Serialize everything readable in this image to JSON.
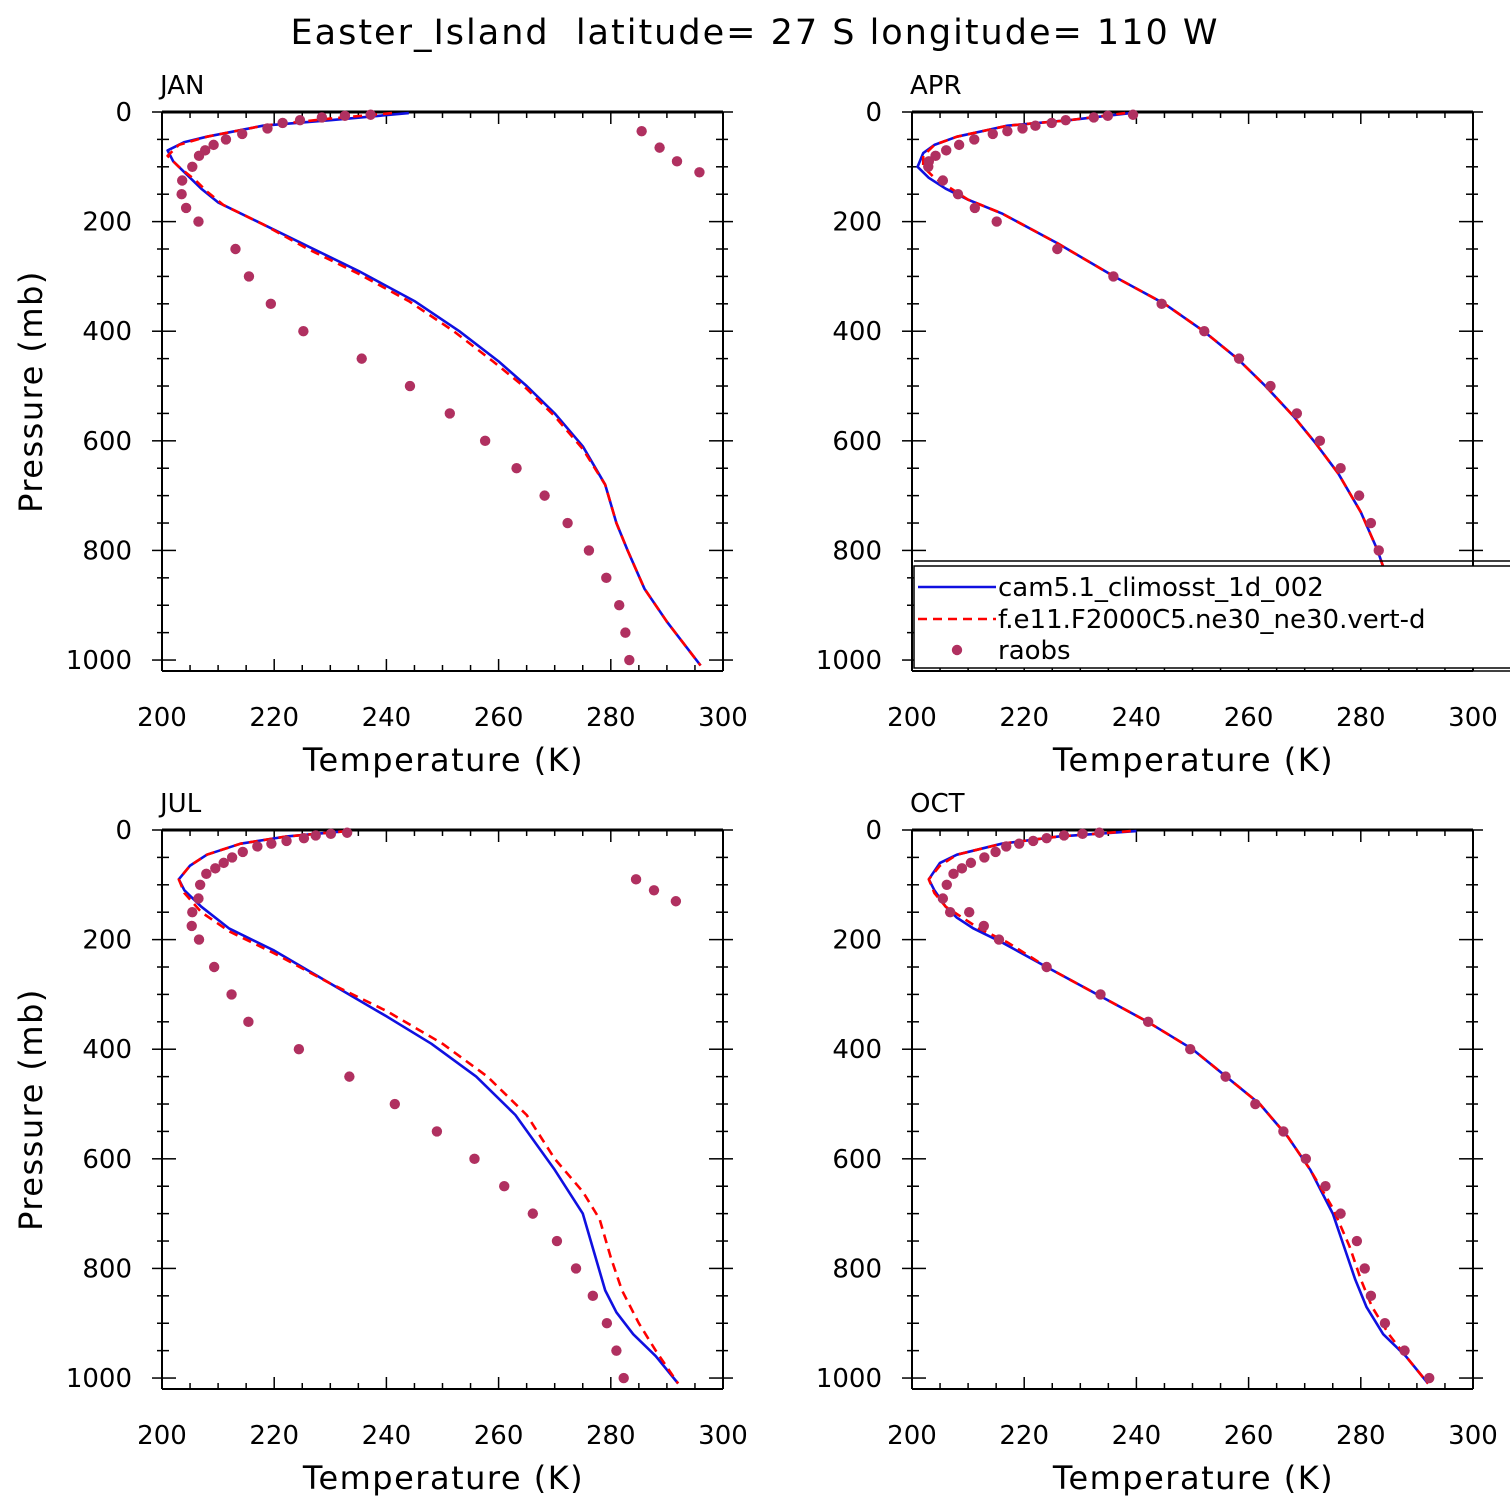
{
  "figure": {
    "title": "Easter_Island  latitude= 27 S longitude= 110 W"
  },
  "colors": {
    "model1": "#1010e0",
    "model2": "#ff0000",
    "obs": "#b03060",
    "axis": "#000000"
  },
  "legend": {
    "placement": "lower-right of APR panel",
    "entries": [
      {
        "label": "cam5.1_climosst_1d_002",
        "style": "solid",
        "color": "#1010e0"
      },
      {
        "label": "f.e11.F2000C5.ne30_ne30.vert-d",
        "style": "dashed",
        "color": "#ff0000"
      },
      {
        "label": "raobs",
        "style": "marker",
        "color": "#b03060"
      }
    ]
  },
  "chart_data": [
    {
      "type": "line",
      "panel_label": "JAN",
      "xlabel": "Temperature (K)",
      "ylabel": "Pressure (mb)",
      "xlim": [
        200,
        300
      ],
      "ylim": [
        1000,
        0
      ],
      "xticks": [
        200,
        220,
        240,
        260,
        280,
        300
      ],
      "yticks": [
        0,
        200,
        400,
        600,
        800,
        1000
      ],
      "series": [
        {
          "name": "cam5.1_climosst_1d_002",
          "style": "solid",
          "x": [
            244,
            230,
            218,
            208,
            204,
            201,
            202,
            205,
            207,
            210,
            217,
            226,
            235,
            245,
            253,
            260,
            265,
            270,
            275,
            279,
            281,
            283,
            286,
            290,
            293,
            296
          ],
          "y": [
            2,
            15,
            25,
            45,
            55,
            70,
            90,
            120,
            140,
            165,
            200,
            245,
            290,
            345,
            400,
            455,
            500,
            550,
            610,
            680,
            750,
            800,
            870,
            930,
            970,
            1010
          ]
        },
        {
          "name": "f.e11.F2000C5.ne30_ne30.vert-d",
          "style": "dashed",
          "x": [
            241,
            230,
            218,
            208,
            203,
            201,
            203,
            206,
            208,
            211,
            218,
            226,
            235,
            244,
            252,
            259,
            265,
            270,
            275,
            279,
            281,
            283,
            286,
            290,
            293,
            296
          ],
          "y": [
            2,
            12,
            25,
            45,
            60,
            80,
            100,
            125,
            145,
            170,
            205,
            250,
            295,
            345,
            400,
            455,
            505,
            555,
            615,
            680,
            750,
            800,
            870,
            930,
            970,
            1010
          ]
        },
        {
          "name": "raobs",
          "style": "marker",
          "x": [
            237.2,
            232.6,
            228.5,
            224.6,
            221.5,
            218.8,
            214.3,
            211.4,
            209.2,
            207.7,
            206.6,
            205.4,
            203.6,
            203.5,
            204.3,
            206.5,
            213.1,
            215.5,
            219.4,
            225.2,
            235.6,
            244.2,
            251.3,
            257.6,
            263.2,
            268.2,
            272.3,
            276.1,
            279.2,
            281.5,
            282.6,
            283.3,
            285.5,
            288.7,
            291.8,
            295.8
          ],
          "y": [
            5,
            7,
            10,
            15,
            20,
            30,
            40,
            50,
            60,
            70,
            80,
            100,
            125,
            150,
            175,
            200,
            250,
            300,
            350,
            400,
            450,
            500,
            550,
            600,
            650,
            700,
            750,
            800,
            850,
            900,
            950,
            1000,
            35,
            65,
            90,
            110
          ]
        }
      ]
    },
    {
      "type": "line",
      "panel_label": "APR",
      "xlabel": "Temperature (K)",
      "ylabel": "",
      "xlim": [
        200,
        300
      ],
      "ylim": [
        1000,
        0
      ],
      "xticks": [
        200,
        220,
        240,
        260,
        280,
        300
      ],
      "yticks": [
        0,
        200,
        400,
        600,
        800,
        1000
      ],
      "series": [
        {
          "name": "cam5.1_climosst_1d_002",
          "style": "solid",
          "x": [
            239,
            228,
            217,
            208,
            204,
            202,
            201,
            203,
            206,
            210,
            216,
            226,
            236,
            245,
            252,
            258,
            263,
            268,
            272,
            276,
            280,
            283,
            285,
            288,
            292,
            295
          ],
          "y": [
            2,
            15,
            25,
            45,
            60,
            75,
            100,
            120,
            140,
            160,
            185,
            240,
            300,
            350,
            400,
            450,
            500,
            555,
            605,
            660,
            730,
            800,
            860,
            910,
            960,
            1010
          ]
        },
        {
          "name": "f.e11.F2000C5.ne30_ne30.vert-d",
          "style": "dashed",
          "x": [
            238,
            228,
            217,
            208,
            204,
            202,
            202,
            204,
            207,
            210,
            216,
            226,
            236,
            245,
            252,
            258,
            263,
            268,
            272,
            276,
            280,
            283,
            285,
            288,
            292,
            295
          ],
          "y": [
            2,
            15,
            25,
            45,
            60,
            80,
            100,
            120,
            140,
            160,
            185,
            240,
            300,
            350,
            400,
            450,
            500,
            555,
            605,
            660,
            730,
            800,
            860,
            910,
            960,
            1010
          ]
        },
        {
          "name": "raobs",
          "style": "marker",
          "x": [
            239.4,
            234.9,
            232.4,
            227.4,
            224.9,
            222.0,
            219.7,
            217.0,
            214.4,
            211.1,
            208.4,
            206.1,
            204.2,
            203.0,
            202.9,
            205.5,
            208.2,
            211.2,
            215.1,
            225.9,
            235.9,
            244.5,
            252.1,
            258.3,
            263.9,
            268.6,
            272.7,
            276.4,
            279.7,
            281.8,
            283.2,
            285.0,
            287.7,
            291.1,
            295.3
          ],
          "y": [
            5,
            7,
            10,
            15,
            20,
            25,
            30,
            35,
            40,
            50,
            60,
            70,
            80,
            90,
            100,
            125,
            150,
            175,
            200,
            250,
            300,
            350,
            400,
            450,
            500,
            550,
            600,
            650,
            700,
            750,
            800,
            850,
            900,
            950,
            1000
          ]
        }
      ]
    },
    {
      "type": "line",
      "panel_label": "JUL",
      "xlabel": "Temperature (K)",
      "ylabel": "Pressure (mb)",
      "xlim": [
        200,
        300
      ],
      "ylim": [
        1000,
        0
      ],
      "xticks": [
        200,
        220,
        240,
        260,
        280,
        300
      ],
      "yticks": [
        0,
        200,
        400,
        600,
        800,
        1000
      ],
      "series": [
        {
          "name": "cam5.1_climosst_1d_002",
          "style": "solid",
          "x": [
            233,
            222,
            214,
            208,
            205,
            203,
            204,
            207,
            212,
            220,
            230,
            240,
            248,
            256,
            263,
            270,
            275,
            277,
            279,
            281,
            284,
            288,
            292
          ],
          "y": [
            2,
            12,
            25,
            45,
            65,
            90,
            110,
            140,
            180,
            220,
            280,
            340,
            390,
            450,
            520,
            620,
            700,
            770,
            840,
            880,
            920,
            960,
            1010
          ]
        },
        {
          "name": "f.e11.F2000C5.ne30_ne30.vert-d",
          "style": "dashed",
          "x": [
            233,
            222,
            214,
            208,
            205,
            203,
            204,
            207,
            212,
            220,
            230,
            240,
            250,
            258,
            265,
            270,
            275,
            278,
            280,
            282,
            285,
            288,
            292
          ],
          "y": [
            2,
            12,
            25,
            45,
            65,
            90,
            115,
            150,
            185,
            225,
            280,
            330,
            390,
            450,
            520,
            600,
            660,
            710,
            780,
            840,
            900,
            950,
            1010
          ]
        },
        {
          "name": "raobs",
          "style": "marker",
          "x": [
            233.0,
            230.1,
            227.4,
            225.3,
            222.2,
            219.5,
            217.0,
            214.4,
            212.5,
            211.0,
            209.5,
            207.9,
            206.8,
            206.5,
            205.4,
            205.3,
            206.6,
            209.3,
            212.4,
            215.4,
            224.4,
            233.4,
            241.5,
            249.0,
            255.7,
            261.0,
            266.1,
            270.4,
            273.8,
            276.8,
            279.3,
            281.0,
            282.3,
            284.5,
            287.7,
            291.6
          ],
          "y": [
            5,
            7,
            10,
            15,
            20,
            25,
            30,
            40,
            50,
            60,
            70,
            80,
            100,
            125,
            150,
            175,
            200,
            250,
            300,
            350,
            400,
            450,
            500,
            550,
            600,
            650,
            700,
            750,
            800,
            850,
            900,
            950,
            1000,
            90,
            110,
            130
          ]
        }
      ]
    },
    {
      "type": "line",
      "panel_label": "OCT",
      "xlabel": "Temperature (K)",
      "ylabel": "",
      "xlim": [
        200,
        300
      ],
      "ylim": [
        1000,
        0
      ],
      "xticks": [
        200,
        220,
        240,
        260,
        280,
        300
      ],
      "yticks": [
        0,
        200,
        400,
        600,
        800,
        1000
      ],
      "series": [
        {
          "name": "cam5.1_climosst_1d_002",
          "style": "solid",
          "x": [
            240,
            226,
            216,
            208,
            205,
            203,
            204,
            206,
            208,
            211,
            216,
            224,
            233,
            242,
            250,
            256,
            262,
            267,
            271,
            275,
            277,
            279,
            281,
            284,
            288,
            292
          ],
          "y": [
            2,
            12,
            25,
            45,
            60,
            90,
            110,
            140,
            160,
            180,
            205,
            250,
            300,
            350,
            400,
            450,
            500,
            560,
            620,
            700,
            760,
            820,
            870,
            920,
            960,
            1010
          ]
        },
        {
          "name": "f.e11.F2000C5.ne30_ne30.vert-d",
          "style": "dashed",
          "x": [
            239,
            226,
            216,
            208,
            205,
            203,
            204,
            206,
            209,
            212,
            217,
            224,
            233,
            242,
            250,
            256,
            262,
            267,
            271,
            275,
            278,
            280,
            282,
            285,
            288,
            292
          ],
          "y": [
            2,
            12,
            25,
            45,
            65,
            90,
            115,
            140,
            160,
            180,
            205,
            250,
            300,
            350,
            400,
            450,
            500,
            560,
            620,
            690,
            760,
            820,
            870,
            920,
            960,
            1010
          ]
        },
        {
          "name": "raobs",
          "style": "marker",
          "x": [
            233.4,
            230.4,
            227.1,
            224.0,
            221.6,
            219.1,
            216.8,
            214.9,
            212.9,
            210.5,
            208.9,
            207.4,
            206.2,
            205.5,
            206.8,
            210.2,
            212.8,
            215.5,
            224.0,
            233.6,
            242.1,
            249.6,
            255.9,
            261.2,
            266.2,
            270.2,
            273.7,
            276.4,
            279.3,
            280.7,
            281.8,
            284.3,
            287.8,
            292.2
          ],
          "y": [
            5,
            7,
            10,
            15,
            20,
            25,
            30,
            40,
            50,
            60,
            70,
            80,
            100,
            125,
            150,
            150,
            175,
            200,
            250,
            300,
            350,
            400,
            450,
            500,
            550,
            600,
            650,
            700,
            750,
            800,
            850,
            900,
            950,
            1000
          ]
        }
      ]
    }
  ]
}
